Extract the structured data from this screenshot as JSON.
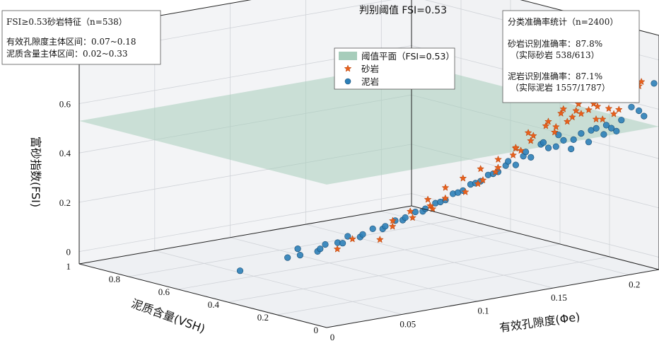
{
  "chart_data": {
    "type": "scatter",
    "title": "判别阈值 FSI=0.53",
    "xlabel": "有效孔隙度(Φe)",
    "ylabel": "泥质含量(VSH)",
    "zlabel": "富砂指数(FSI)",
    "xlim": [
      0,
      0.22
    ],
    "ylim": [
      0,
      1
    ],
    "zlim": [
      -0.05,
      0.9
    ],
    "x_ticks": [
      "0",
      "0.05",
      "0.1",
      "0.15",
      "0.2"
    ],
    "y_ticks": [
      "0",
      "0.2",
      "0.4",
      "0.6",
      "0.8",
      "1"
    ],
    "z_ticks": [
      "0",
      "0.2",
      "0.4",
      "0.6",
      "0.8"
    ],
    "grid": true,
    "threshold": 0.53,
    "colors": {
      "sandstone": "#e8601c",
      "mudstone": "#2c7fb8",
      "plane": "#a7cdbb",
      "pane": "#eef0f3"
    },
    "legend": {
      "position": "top-center",
      "items": [
        "阈值平面（FSI=0.53）",
        "砂岩",
        "泥岩"
      ]
    },
    "series": [
      {
        "name": "砂岩",
        "count": 613,
        "marker": "star",
        "points": [
          [
            0.03,
            0.14,
            0.2
          ],
          [
            0.04,
            0.14,
            0.23
          ],
          [
            0.05,
            0.09,
            0.23
          ],
          [
            0.06,
            0.1,
            0.27
          ],
          [
            0.07,
            0.08,
            0.3
          ],
          [
            0.08,
            0.06,
            0.33
          ],
          [
            0.08,
            0.07,
            0.34
          ],
          [
            0.09,
            0.07,
            0.36
          ],
          [
            0.1,
            0.05,
            0.38
          ],
          [
            0.11,
            0.06,
            0.4
          ],
          [
            0.11,
            0.04,
            0.42
          ],
          [
            0.12,
            0.05,
            0.44
          ],
          [
            0.12,
            0.04,
            0.46
          ],
          [
            0.13,
            0.04,
            0.5
          ],
          [
            0.13,
            0.03,
            0.53
          ],
          [
            0.14,
            0.03,
            0.55
          ],
          [
            0.14,
            0.04,
            0.58
          ],
          [
            0.15,
            0.03,
            0.6
          ],
          [
            0.15,
            0.02,
            0.62
          ],
          [
            0.16,
            0.03,
            0.64
          ],
          [
            0.16,
            0.02,
            0.66
          ],
          [
            0.17,
            0.02,
            0.67
          ],
          [
            0.17,
            0.03,
            0.64
          ],
          [
            0.18,
            0.02,
            0.66
          ],
          [
            0.18,
            0.01,
            0.6
          ],
          [
            0.19,
            0.02,
            0.63
          ],
          [
            0.2,
            0.02,
            0.66
          ],
          [
            0.2,
            0.01,
            0.68
          ],
          [
            0.21,
            0.02,
            0.7
          ],
          [
            0.21,
            0.01,
            0.72
          ],
          [
            0.155,
            0.025,
            0.57
          ],
          [
            0.165,
            0.035,
            0.6
          ],
          [
            0.145,
            0.05,
            0.56
          ],
          [
            0.135,
            0.06,
            0.52
          ],
          [
            0.125,
            0.07,
            0.48
          ],
          [
            0.175,
            0.04,
            0.62
          ],
          [
            0.185,
            0.035,
            0.64
          ],
          [
            0.195,
            0.03,
            0.6
          ],
          [
            0.105,
            0.09,
            0.42
          ],
          [
            0.095,
            0.1,
            0.39
          ],
          [
            0.115,
            0.08,
            0.45
          ],
          [
            0.085,
            0.11,
            0.35
          ],
          [
            0.075,
            0.12,
            0.31
          ],
          [
            0.065,
            0.13,
            0.28
          ],
          [
            0.16,
            0.05,
            0.58
          ],
          [
            0.17,
            0.045,
            0.61
          ],
          [
            0.18,
            0.04,
            0.63
          ],
          [
            0.19,
            0.045,
            0.58
          ],
          [
            0.2,
            0.04,
            0.61
          ],
          [
            0.14,
            0.07,
            0.5
          ]
        ]
      },
      {
        "name": "泥岩",
        "count": 1787,
        "marker": "circle",
        "points": [
          [
            0.0,
            0.35,
            0.09
          ],
          [
            0.02,
            0.28,
            0.14
          ],
          [
            0.03,
            0.3,
            0.16
          ],
          [
            0.03,
            0.22,
            0.17
          ],
          [
            0.04,
            0.25,
            0.18
          ],
          [
            0.04,
            0.2,
            0.2
          ],
          [
            0.05,
            0.22,
            0.21
          ],
          [
            0.05,
            0.17,
            0.22
          ],
          [
            0.06,
            0.18,
            0.24
          ],
          [
            0.06,
            0.14,
            0.25
          ],
          [
            0.07,
            0.15,
            0.27
          ],
          [
            0.07,
            0.12,
            0.28
          ],
          [
            0.08,
            0.13,
            0.3
          ],
          [
            0.08,
            0.1,
            0.31
          ],
          [
            0.09,
            0.11,
            0.33
          ],
          [
            0.09,
            0.09,
            0.34
          ],
          [
            0.1,
            0.1,
            0.36
          ],
          [
            0.1,
            0.08,
            0.37
          ],
          [
            0.11,
            0.09,
            0.39
          ],
          [
            0.11,
            0.07,
            0.4
          ],
          [
            0.12,
            0.08,
            0.42
          ],
          [
            0.12,
            0.06,
            0.43
          ],
          [
            0.13,
            0.07,
            0.45
          ],
          [
            0.13,
            0.06,
            0.47
          ],
          [
            0.14,
            0.06,
            0.48
          ],
          [
            0.14,
            0.05,
            0.5
          ],
          [
            0.15,
            0.05,
            0.52
          ],
          [
            0.15,
            0.04,
            0.53
          ],
          [
            0.16,
            0.04,
            0.55
          ],
          [
            0.16,
            0.05,
            0.5
          ],
          [
            0.17,
            0.04,
            0.52
          ],
          [
            0.17,
            0.05,
            0.48
          ],
          [
            0.18,
            0.03,
            0.55
          ],
          [
            0.18,
            0.04,
            0.5
          ],
          [
            0.19,
            0.03,
            0.56
          ],
          [
            0.19,
            0.04,
            0.52
          ],
          [
            0.2,
            0.03,
            0.57
          ],
          [
            0.2,
            0.05,
            0.52
          ],
          [
            0.21,
            0.02,
            0.6
          ],
          [
            0.22,
            0.02,
            0.7
          ],
          [
            0.215,
            0.03,
            0.57
          ],
          [
            0.205,
            0.02,
            0.62
          ],
          [
            0.025,
            0.26,
            0.15
          ],
          [
            0.035,
            0.24,
            0.17
          ],
          [
            0.045,
            0.21,
            0.19
          ],
          [
            0.055,
            0.19,
            0.22
          ],
          [
            0.065,
            0.16,
            0.25
          ],
          [
            0.075,
            0.14,
            0.28
          ],
          [
            0.085,
            0.12,
            0.31
          ],
          [
            0.095,
            0.1,
            0.34
          ],
          [
            0.105,
            0.09,
            0.37
          ],
          [
            0.115,
            0.08,
            0.4
          ],
          [
            0.125,
            0.07,
            0.43
          ],
          [
            0.135,
            0.06,
            0.45
          ],
          [
            0.145,
            0.06,
            0.47
          ],
          [
            0.155,
            0.05,
            0.5
          ],
          [
            0.165,
            0.05,
            0.52
          ],
          [
            0.175,
            0.04,
            0.54
          ],
          [
            0.185,
            0.04,
            0.55
          ],
          [
            0.195,
            0.04,
            0.54
          ]
        ]
      }
    ],
    "stats_box": {
      "title": "FSI≥0.53砂岩特征（n=538）",
      "lines": [
        "有效孔隙度主体区间：0.07~0.18",
        "泥质含量主体区间：0.02~0.33"
      ]
    },
    "accuracy_box": {
      "title": "分类准确率统计（n=2400）",
      "lines": [
        "砂岩识别准确率：87.8%",
        "（实际砂岩 538/613）",
        "泥岩识别准确率：87.1%",
        "（实际泥岩 1557/1787）"
      ]
    }
  }
}
